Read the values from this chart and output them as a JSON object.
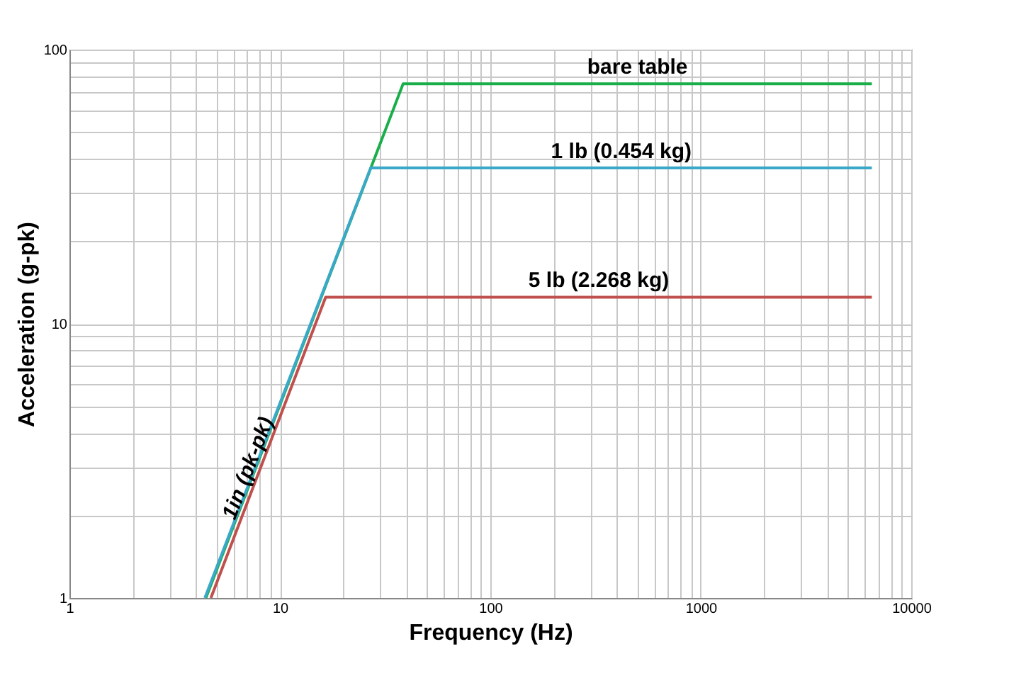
{
  "chart_data": {
    "type": "line",
    "xlabel": "Frequency (Hz)",
    "ylabel": "Acceleration (g-pk)",
    "log": "xy",
    "grid": true,
    "legend": false,
    "marker": "none",
    "line_style": "solid",
    "xlim": [
      1,
      10000
    ],
    "ylim": [
      1,
      100
    ],
    "xticks": [
      1,
      {
        "value": 2,
        "label": null
      },
      {
        "value": 3,
        "label": null
      },
      {
        "value": 4,
        "label": null
      },
      {
        "value": 5,
        "label": null
      },
      {
        "value": 6,
        "label": null
      },
      {
        "value": 7,
        "label": null
      },
      {
        "value": 8,
        "label": null
      },
      {
        "value": 9,
        "label": null
      },
      10,
      {
        "value": 20,
        "label": null
      },
      {
        "value": 30,
        "label": null
      },
      {
        "value": 40,
        "label": null
      },
      {
        "value": 50,
        "label": null
      },
      {
        "value": 60,
        "label": null
      },
      {
        "value": 70,
        "label": null
      },
      {
        "value": 80,
        "label": null
      },
      {
        "value": 90,
        "label": null
      },
      100,
      {
        "value": 200,
        "label": null
      },
      {
        "value": 300,
        "label": null
      },
      {
        "value": 400,
        "label": null
      },
      {
        "value": 500,
        "label": null
      },
      {
        "value": 600,
        "label": null
      },
      {
        "value": 700,
        "label": null
      },
      {
        "value": 800,
        "label": null
      },
      {
        "value": 900,
        "label": null
      },
      1000,
      {
        "value": 2000,
        "label": null
      },
      {
        "value": 3000,
        "label": null
      },
      {
        "value": 4000,
        "label": null
      },
      {
        "value": 5000,
        "label": null
      },
      {
        "value": 6000,
        "label": null
      },
      {
        "value": 7000,
        "label": null
      },
      {
        "value": 8000,
        "label": null
      },
      {
        "value": 9000,
        "label": null
      },
      10000
    ],
    "yticks": [
      1,
      {
        "value": 2,
        "label": null
      },
      {
        "value": 3,
        "label": null
      },
      {
        "value": 4,
        "label": null
      },
      {
        "value": 5,
        "label": null
      },
      {
        "value": 6,
        "label": null
      },
      {
        "value": 7,
        "label": null
      },
      {
        "value": 8,
        "label": null
      },
      {
        "value": 9,
        "label": null
      },
      10,
      {
        "value": 20,
        "label": null
      },
      {
        "value": 30,
        "label": null
      },
      {
        "value": 40,
        "label": null
      },
      {
        "value": 50,
        "label": null
      },
      {
        "value": 60,
        "label": null
      },
      {
        "value": 70,
        "label": null
      },
      {
        "value": 80,
        "label": null
      },
      {
        "value": 90,
        "label": null
      },
      100
    ],
    "series": [
      {
        "name": "bare table",
        "color": "#1aae4a",
        "x": [
          4.45,
          38.5,
          6500
        ],
        "values": [
          1,
          75,
          75
        ]
      },
      {
        "name": "1 lb (0.454 kg)",
        "color": "#3aa8c8",
        "x": [
          4.4,
          27,
          6500
        ],
        "values": [
          1,
          37,
          37
        ]
      },
      {
        "name": "5 lb (2.268 kg)",
        "color": "#c0504d",
        "x": [
          4.7,
          16.5,
          6500
        ],
        "values": [
          1,
          12.5,
          12.5
        ]
      }
    ],
    "annotations": [
      {
        "text": "1in (pk-pk)",
        "x": 7.5,
        "y": 3.4
      }
    ]
  }
}
